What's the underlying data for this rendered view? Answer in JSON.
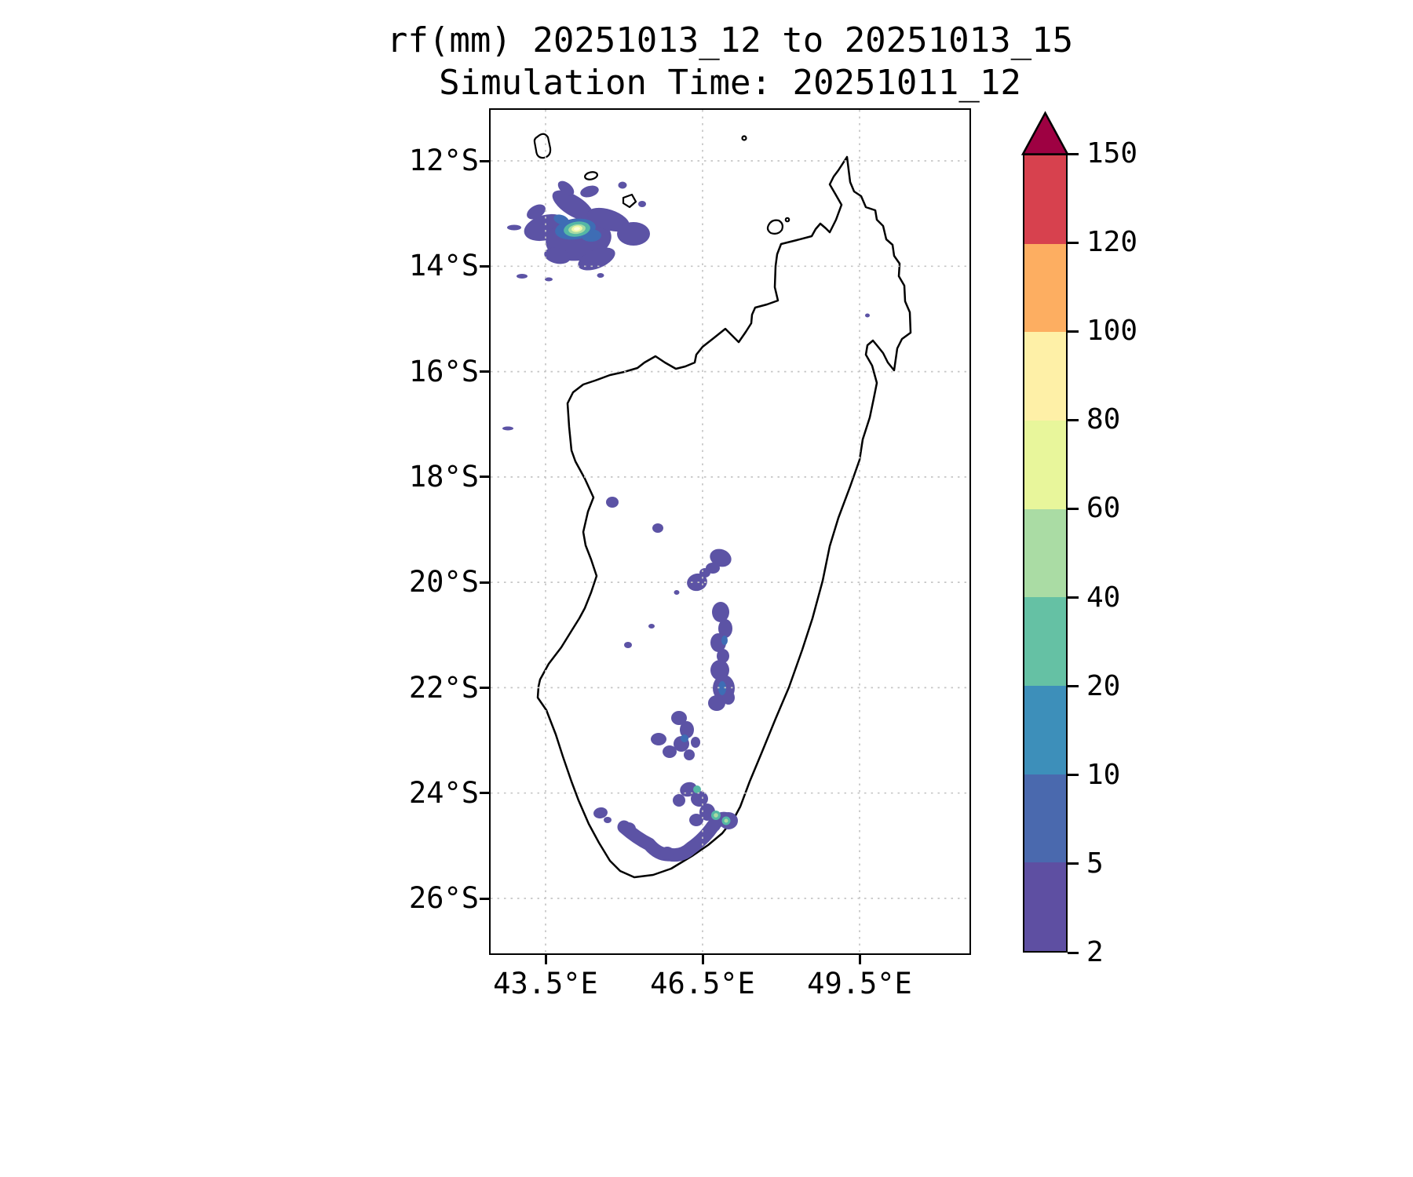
{
  "title": {
    "line1": "rf(mm) 20251013_12 to 20251013_15",
    "line2": "Simulation Time: 20251011_12"
  },
  "axes": {
    "y_tick_labels": [
      "12°S",
      "14°S",
      "16°S",
      "18°S",
      "20°S",
      "22°S",
      "24°S",
      "26°S"
    ],
    "x_tick_labels": [
      "43.5°E",
      "46.5°E",
      "49.5°E"
    ]
  },
  "colorbar": {
    "levels": [
      "2",
      "5",
      "10",
      "20",
      "40",
      "60",
      "80",
      "100",
      "120",
      "150"
    ],
    "segment_colors": [
      "#5e4fa2",
      "#4a69ae",
      "#3d8fba",
      "#65c1a4",
      "#aadca4",
      "#e8f69b",
      "#fef0a7",
      "#fdae61",
      "#d7414e"
    ],
    "over_color": "#9e0142",
    "outline_color": "#000000"
  },
  "map": {
    "region": "Madagascar",
    "land_fill": "#ffffff",
    "coast_color": "#000000",
    "grid_color": "#c6c6c6",
    "palette": {
      "rain_low": "#5c53a5",
      "rain_blue": "#3e6db5",
      "rain_teal": "#55b7a5",
      "rain_green": "#a8dba3",
      "rain_pale": "#eef7a6",
      "rain_core": "#fdfdd8"
    }
  },
  "chart_data": {
    "type": "heatmap",
    "title": "rf(mm) 20251013_12 to 20251013_15",
    "subtitle": "Simulation Time: 20251011_12",
    "variable": "rf",
    "units": "mm",
    "valid_period": {
      "start": "20251013_12",
      "end": "20251013_15"
    },
    "simulation_time": "20251011_12",
    "region": "Madagascar and surrounding ocean",
    "xlim_deg_east": [
      42.5,
      51.6
    ],
    "ylim_deg_south": [
      27.0,
      11.0
    ],
    "x_ticks_deg_east": [
      43.5,
      46.5,
      49.5
    ],
    "y_ticks_deg_south": [
      12,
      14,
      16,
      18,
      20,
      22,
      24,
      26
    ],
    "contour_levels_mm": [
      2,
      5,
      10,
      20,
      40,
      60,
      80,
      100,
      120,
      150
    ],
    "legend_position": "right",
    "grid": true,
    "features": [
      {
        "name": "offshore-northwest-storm-cluster",
        "center_deg_east": 44.4,
        "center_deg_south": 13.3,
        "peak_mm": 80,
        "extent_deg": 1.8
      },
      {
        "name": "northwest-outlier-specks",
        "center_deg_east": 43.2,
        "center_deg_south": 14.2,
        "peak_mm": 5,
        "extent_deg": 0.3
      },
      {
        "name": "central-highlands-specks",
        "center_deg_east": 45.8,
        "center_deg_south": 18.8,
        "peak_mm": 5,
        "extent_deg": 0.3
      },
      {
        "name": "south-central-rain-band",
        "center_deg_east": 46.8,
        "center_deg_south": 22.5,
        "peak_mm": 25,
        "extent_deg": 4.5
      }
    ]
  }
}
